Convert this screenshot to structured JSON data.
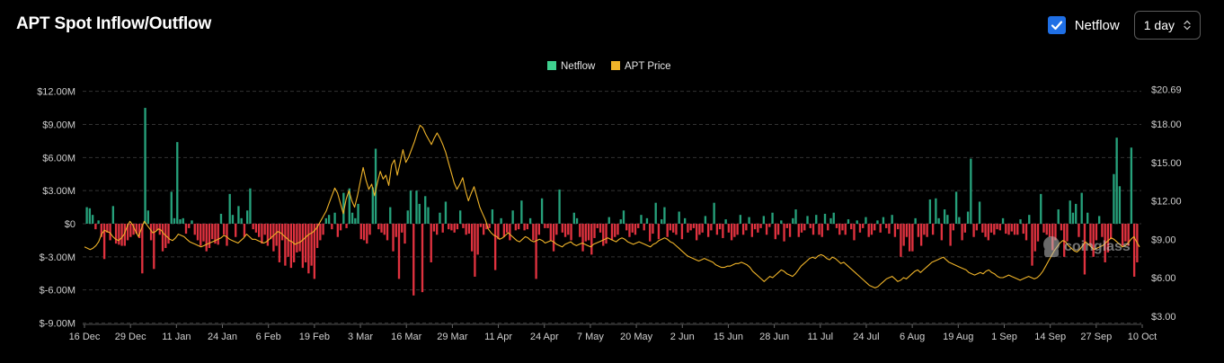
{
  "header": {
    "title": "APT Spot Inflow/Outflow"
  },
  "controls": {
    "netflow_label": "Netflow",
    "netflow_checked": true,
    "interval_value": "1 day",
    "checkbox_icon": "check-icon",
    "select_icon": "chevron-updown-icon"
  },
  "watermark": {
    "text": "coinglass",
    "icon": "coinglass-logo-icon"
  },
  "colors": {
    "positive": "#26a17b",
    "negative": "#e0323f",
    "price": "#f0b429",
    "grid": "#333333",
    "netflow_legend": "#3fcf8e",
    "price_legend": "#f0b429"
  },
  "chart_data": {
    "type": "bar",
    "title": "APT Spot Inflow/Outflow",
    "legend": {
      "position": "top-center",
      "entries": [
        "Netflow",
        "APT Price"
      ]
    },
    "grid": true,
    "y_left": {
      "ticks": [
        "$12.00M",
        "$9.00M",
        "$6.00M",
        "$3.00M",
        "$0",
        "$-3.00M",
        "$-6.00M",
        "$-9.00M"
      ],
      "range": [
        -9,
        12
      ],
      "unit": "USD millions"
    },
    "y_right": {
      "ticks": [
        "$20.69",
        "$18.00",
        "$15.00",
        "$12.00",
        "$9.00",
        "$6.00",
        "$3.00"
      ],
      "range": [
        3,
        20.69
      ],
      "unit": "USD"
    },
    "x_ticks": [
      "16 Dec",
      "29 Dec",
      "11 Jan",
      "24 Jan",
      "6 Feb",
      "19 Feb",
      "3 Mar",
      "16 Mar",
      "29 Mar",
      "11 Apr",
      "24 Apr",
      "7 May",
      "20 May",
      "2 Jun",
      "15 Jun",
      "28 Jun",
      "11 Jul",
      "24 Jul",
      "6 Aug",
      "19 Aug",
      "1 Sep",
      "14 Sep",
      "27 Sep",
      "10 Oct"
    ],
    "series": [
      {
        "name": "Netflow",
        "type": "bar",
        "values": [
          1.5,
          1.4,
          0.8,
          -0.5,
          0.3,
          -1.2,
          -3.2,
          -0.8,
          -1.5,
          1.6,
          -1.8,
          -1.9,
          -2.0,
          -2.0,
          -1.5,
          -1.2,
          -1.0,
          -0.9,
          -1.3,
          -4.5,
          10.5,
          1.2,
          -1.5,
          -4.1,
          -0.6,
          -1.0,
          -2.5,
          -2.2,
          -1.8,
          2.9,
          0.5,
          7.4,
          0.4,
          0.5,
          -0.9,
          -0.4,
          0.3,
          -1.0,
          -1.5,
          -2.0,
          -1.6,
          -2.5,
          -2.2,
          -1.4,
          -1.8,
          -1.9,
          0.9,
          -1.0,
          -2.0,
          2.7,
          0.8,
          -1.2,
          1.6,
          0.5,
          -1.2,
          1.2,
          3.2,
          -0.5,
          -0.8,
          -1.2,
          -1.8,
          -1.0,
          -2.0,
          -1.4,
          -2.5,
          -2.0,
          -3.5,
          -1.5,
          -3.8,
          -3.0,
          -4.0,
          -3.5,
          -2.6,
          -2.5,
          -4.0,
          -3.5,
          -4.5,
          -3.8,
          -5.0,
          -2.2,
          -1.5,
          -1.0,
          0.5,
          0.8,
          -0.5,
          1.0,
          -1.2,
          -0.6,
          2.8,
          -0.4,
          3.2,
          1.0,
          0.5,
          1.8,
          -1.4,
          -1.5,
          -1.8,
          -1.0,
          3.3,
          6.8,
          -0.5,
          -0.8,
          -1.0,
          -1.5,
          1.5,
          -2.5,
          -1.2,
          -5.0,
          -0.8,
          -1.8,
          1.2,
          3.0,
          -6.5,
          3.0,
          1.8,
          -6.2,
          2.5,
          1.5,
          -3.5,
          -0.7,
          -1.0,
          1.0,
          -0.8,
          2.0,
          -0.5,
          -0.6,
          -0.8,
          -0.5,
          1.2,
          -0.4,
          -1.0,
          -0.9,
          -2.5,
          -4.8,
          -2.8,
          -0.3,
          -1.0,
          -0.5,
          -0.4,
          1.3,
          -4.2,
          -1.4,
          0.5,
          -1.2,
          -0.8,
          -1.5,
          1.2,
          -0.6,
          -0.5,
          2.1,
          -0.6,
          -0.5,
          0.5,
          -1.5,
          -5.0,
          -1.0,
          2.3,
          -0.4,
          -0.4,
          -1.5,
          -2.5,
          -1.0,
          3.1,
          -0.8,
          -1.2,
          -1.0,
          -1.5,
          1.0,
          0.5,
          -1.2,
          -2.5,
          -1.6,
          -1.5,
          -2.8,
          -1.3,
          -0.4,
          -0.8,
          -2.0,
          -1.8,
          0.6,
          -1.5,
          -1.2,
          -1.0,
          0.4,
          1.2,
          -0.6,
          -1.2,
          -0.8,
          -1.0,
          -0.4,
          0.8,
          -0.6,
          0.5,
          -1.6,
          -0.9,
          1.9,
          -1.4,
          0.4,
          1.5,
          -1.2,
          -0.6,
          -0.8,
          -1.0,
          1.1,
          -1.4,
          0.5,
          -0.8,
          -0.6,
          -0.4,
          -1.5,
          -1.0,
          -0.8,
          0.7,
          -1.2,
          -0.6,
          1.9,
          -1.0,
          -0.5,
          -1.3,
          0.4,
          -0.8,
          -1.5,
          -1.2,
          -1.0,
          0.8,
          -1.0,
          -0.6,
          0.6,
          -1.2,
          -0.5,
          -0.8,
          -0.4,
          0.7,
          -1.0,
          -0.3,
          1.0,
          -1.4,
          -1.0,
          0.3,
          -1.6,
          -0.4,
          -1.2,
          0.5,
          1.3,
          -1.2,
          -0.8,
          -0.6,
          0.7,
          -0.4,
          -1.0,
          0.8,
          -1.0,
          -1.2,
          0.9,
          -0.6,
          0.5,
          1.0,
          -0.4,
          -1.0,
          -0.6,
          -1.0,
          0.4,
          -0.5,
          -1.5,
          0.3,
          -0.8,
          -0.4,
          0.6,
          -1.2,
          -1.0,
          -0.6,
          0.3,
          -0.8,
          0.6,
          -0.4,
          -0.9,
          0.8,
          -1.2,
          -0.5,
          -3.0,
          -2.0,
          -1.2,
          -2.5,
          -2.5,
          0.5,
          -1.2,
          -2.0,
          -1.0,
          -1.2,
          2.2,
          -1.0,
          2.3,
          0.5,
          -1.5,
          1.3,
          0.8,
          -2.0,
          -0.6,
          2.9,
          0.6,
          -1.5,
          -0.8,
          1.1,
          5.9,
          -1.2,
          -0.6,
          2.0,
          -0.8,
          -1.2,
          -1.5,
          -0.8,
          -1.0,
          -0.5,
          -0.6,
          0.5,
          -0.9,
          -1.0,
          -0.7,
          -1.0,
          -1.0,
          0.4,
          -0.9,
          -1.5,
          0.8,
          -3.8,
          -2.5,
          -1.6,
          2.7,
          -0.8,
          -1.0,
          -1.2,
          -2.4,
          -1.5,
          1.3,
          -0.6,
          -3.0,
          -1.6,
          2.1,
          1.0,
          1.8,
          -1.2,
          2.8,
          -4.6,
          1.0,
          -2.0,
          -3.0,
          -1.5,
          0.7,
          -1.2,
          -3.5,
          -2.6,
          -1.4,
          4.5,
          7.8,
          3.4,
          -2.0,
          -1.6,
          -2.0,
          6.9,
          -4.8,
          -3.5
        ]
      },
      {
        "name": "APT Price",
        "type": "line",
        "values": [
          8.4,
          8.3,
          8.2,
          8.3,
          8.5,
          8.8,
          9.4,
          9.7,
          9.6,
          9.5,
          9.2,
          9.0,
          8.9,
          9.1,
          9.4,
          10.0,
          10.4,
          10.1,
          9.6,
          9.2,
          9.8,
          10.4,
          10.1,
          9.8,
          9.5,
          9.6,
          9.8,
          9.7,
          9.4,
          9.2,
          9.0,
          8.9,
          9.1,
          9.4,
          9.3,
          9.2,
          9.0,
          8.8,
          8.7,
          8.6,
          8.5,
          8.4,
          8.5,
          8.6,
          8.7,
          8.8,
          8.9,
          9.0,
          9.1,
          9.3,
          9.2,
          9.0,
          8.9,
          8.8,
          8.7,
          8.9,
          9.1,
          9.4,
          9.2,
          9.0,
          9.0,
          8.9,
          8.8,
          8.7,
          8.8,
          9.0,
          9.2,
          9.4,
          9.6,
          9.5,
          9.3,
          9.1,
          8.9,
          8.8,
          8.6,
          8.7,
          8.8,
          9.0,
          9.2,
          9.4,
          9.5,
          9.7,
          10.0,
          10.4,
          10.8,
          11.2,
          11.8,
          12.4,
          13.0,
          12.6,
          11.8,
          11.0,
          12.1,
          12.8,
          12.0,
          11.5,
          12.4,
          13.5,
          14.6,
          13.6,
          12.9,
          13.3,
          12.4,
          13.4,
          14.3,
          13.7,
          14.0,
          13.2,
          14.8,
          15.2,
          14.0,
          15.0,
          16.0,
          15.0,
          15.4,
          16.0,
          16.6,
          17.3,
          17.9,
          17.7,
          17.2,
          16.8,
          16.4,
          16.9,
          17.3,
          16.9,
          16.4,
          15.8,
          15.0,
          14.2,
          13.4,
          12.9,
          13.3,
          13.8,
          12.8,
          12.0,
          12.6,
          13.1,
          12.3,
          11.5,
          11.0,
          10.5,
          9.8,
          9.5,
          9.3,
          9.2,
          9.0,
          9.1,
          9.3,
          9.5,
          9.3,
          9.1,
          8.9,
          8.8,
          9.0,
          9.2,
          9.1,
          8.9,
          8.8,
          8.9,
          9.0,
          8.9,
          8.7,
          8.8,
          8.9,
          8.8,
          8.6,
          8.5,
          8.4,
          8.6,
          8.7,
          8.8,
          8.6,
          8.5,
          8.6,
          8.7,
          8.6,
          8.5,
          8.4,
          8.6,
          8.7,
          8.8,
          8.9,
          9.0,
          9.1,
          9.0,
          8.9,
          8.8,
          9.0,
          9.1,
          9.0,
          8.8,
          8.7,
          8.6,
          8.7,
          8.8,
          8.7,
          8.6,
          8.5,
          8.4,
          8.6,
          8.7,
          8.9,
          9.0,
          9.1,
          9.0,
          8.8,
          8.7,
          8.5,
          8.3,
          8.1,
          7.9,
          7.7,
          7.6,
          7.5,
          7.4,
          7.3,
          7.4,
          7.5,
          7.4,
          7.3,
          7.2,
          7.0,
          6.9,
          6.8,
          6.8,
          6.9,
          6.9,
          7.0,
          7.1,
          7.1,
          7.2,
          7.1,
          7.0,
          6.8,
          6.5,
          6.3,
          6.1,
          5.9,
          5.7,
          5.9,
          6.1,
          6.0,
          6.2,
          6.4,
          6.6,
          6.5,
          6.3,
          6.2,
          6.1,
          6.3,
          6.6,
          6.9,
          7.1,
          7.3,
          7.5,
          7.6,
          7.5,
          7.7,
          7.8,
          7.7,
          7.5,
          7.4,
          7.6,
          7.5,
          7.3,
          7.1,
          7.2,
          7.0,
          6.8,
          6.6,
          6.4,
          6.2,
          6.0,
          5.8,
          5.6,
          5.4,
          5.3,
          5.2,
          5.3,
          5.5,
          5.7,
          5.9,
          6.0,
          6.1,
          5.9,
          5.7,
          5.8,
          6.0,
          5.9,
          6.1,
          6.3,
          6.5,
          6.6,
          6.4,
          6.6,
          6.8,
          7.0,
          7.2,
          7.3,
          7.4,
          7.5,
          7.6,
          7.4,
          7.2,
          7.1,
          7.0,
          6.9,
          6.8,
          6.7,
          6.6,
          6.4,
          6.3,
          6.2,
          6.3,
          6.4,
          6.3,
          6.5,
          6.6,
          6.4,
          6.3,
          6.1,
          6.0,
          6.0,
          6.1,
          6.2,
          6.1,
          6.0,
          5.9,
          5.8,
          5.9,
          6.0,
          6.1,
          6.0,
          5.9,
          6.0,
          6.2,
          6.5,
          6.9,
          7.3,
          7.7,
          8.1,
          8.4,
          8.7,
          8.9,
          8.8,
          8.5,
          8.3,
          8.1,
          8.0,
          8.2,
          8.5,
          8.8,
          8.6,
          8.4,
          8.2,
          8.3,
          8.4,
          8.5,
          8.7,
          8.9,
          9.1,
          9.0,
          8.8,
          8.6,
          8.4,
          8.5,
          8.7,
          9.0,
          9.2,
          8.8,
          8.4
        ]
      }
    ]
  }
}
